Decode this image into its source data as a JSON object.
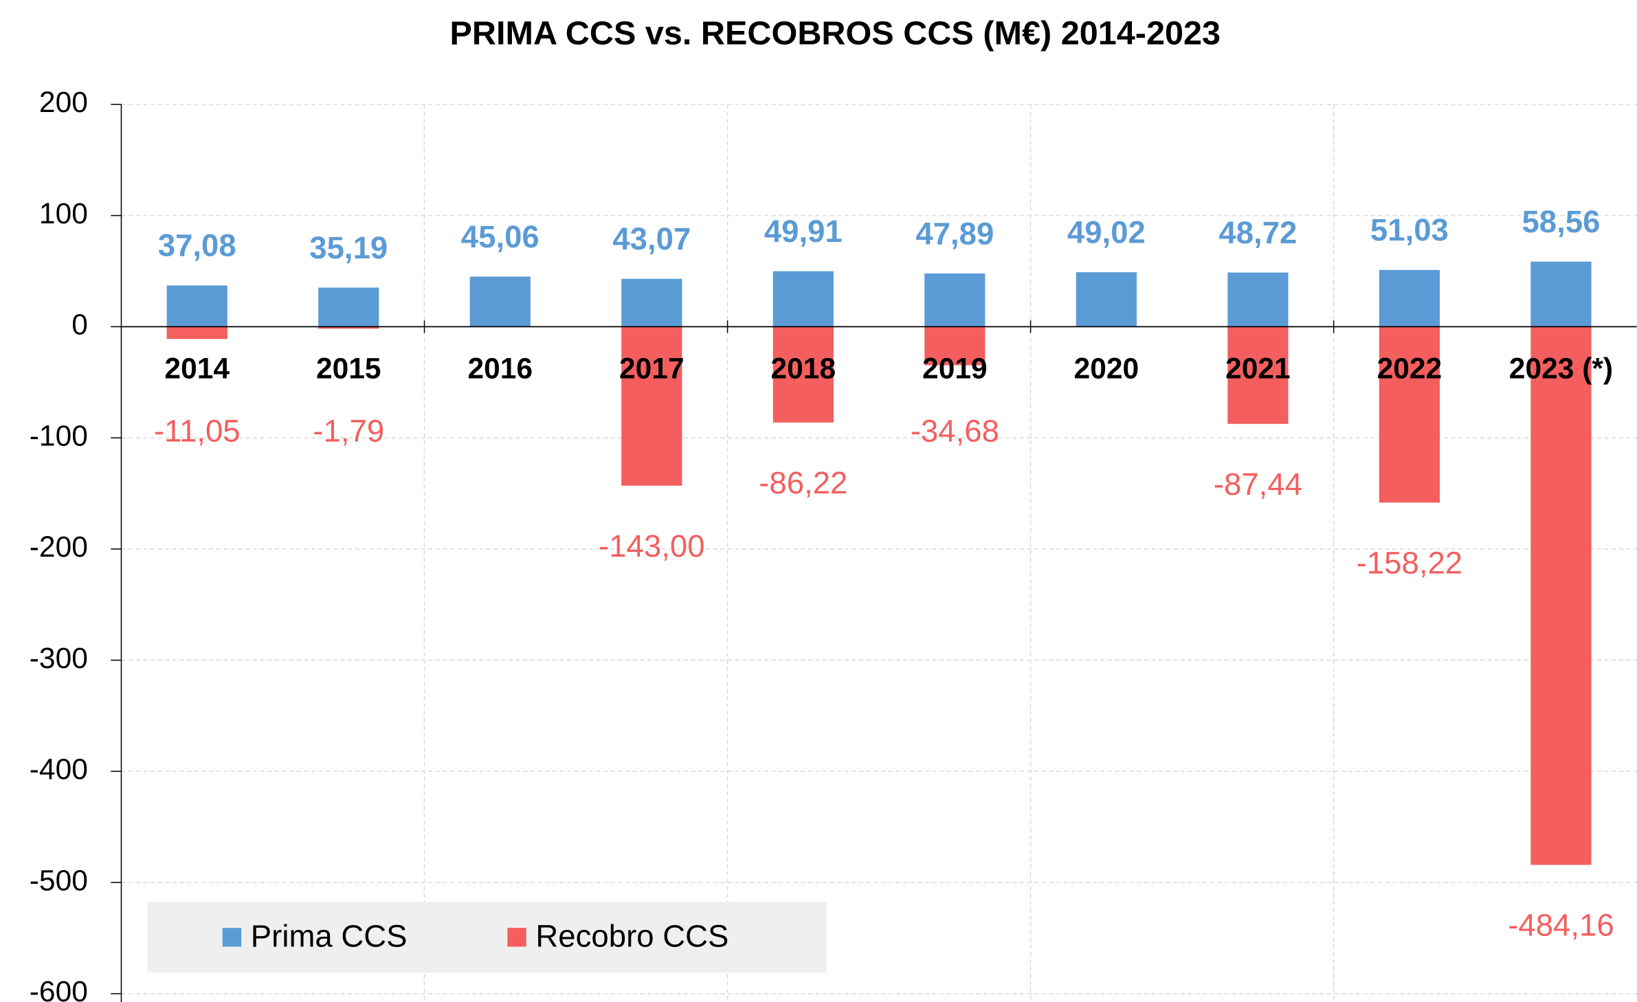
{
  "chart_data": {
    "type": "bar",
    "title": "PRIMA CCS vs. RECOBROS CCS (M€) 2014-2023",
    "categories": [
      "2014",
      "2015",
      "2016",
      "2017",
      "2018",
      "2019",
      "2020",
      "2021",
      "2022",
      "2023 (*)"
    ],
    "series": [
      {
        "name": "Prima CCS",
        "color": "#5b9bd5",
        "values": [
          37.08,
          35.19,
          45.06,
          43.07,
          49.91,
          47.89,
          49.02,
          48.72,
          51.03,
          58.56
        ],
        "value_labels": [
          "37,08",
          "35,19",
          "45,06",
          "43,07",
          "49,91",
          "47,89",
          "49,02",
          "48,72",
          "51,03",
          "58,56"
        ]
      },
      {
        "name": "Recobro CCS",
        "color": "#f45e5e",
        "values": [
          -11.05,
          -1.79,
          null,
          -143.0,
          -86.22,
          -34.68,
          null,
          -87.44,
          -158.22,
          -484.16
        ],
        "value_labels": [
          "-11,05",
          "-1,79",
          null,
          "-143,00",
          "-86,22",
          "-34,68",
          null,
          "-87,44",
          "-158,22",
          "-484,16"
        ]
      }
    ],
    "ylim": [
      -600,
      200
    ],
    "yticks": [
      -600,
      -500,
      -400,
      -300,
      -200,
      -100,
      0,
      100,
      200
    ],
    "grid": true,
    "legend": "bottom-left"
  }
}
